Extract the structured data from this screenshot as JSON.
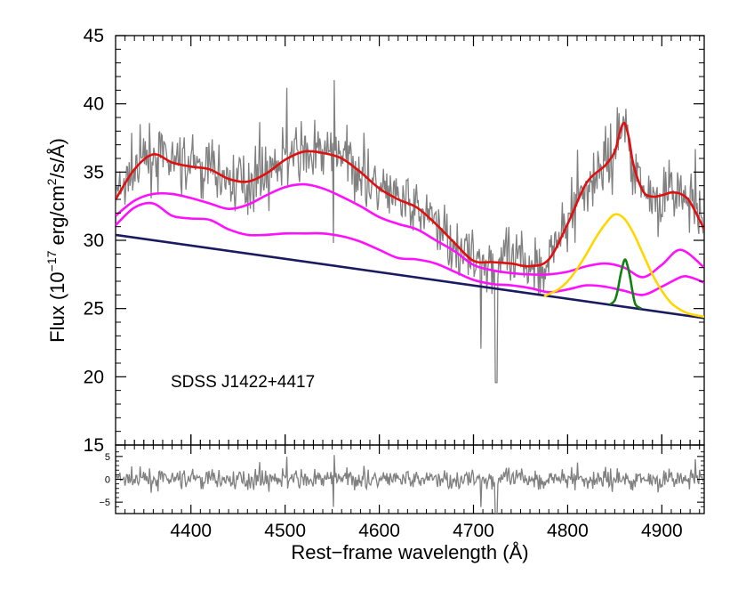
{
  "chart_data": [
    {
      "type": "line",
      "panel": "main spectrum fit",
      "annotation": "SDSS J1422+4417",
      "xlabel": "Rest−frame wavelength (Å)",
      "ylabel_parts": {
        "prefix": "Flux (10",
        "exp1": "−17",
        "mid": " erg/cm",
        "exp2": "2",
        "suffix": "/s/Å)"
      },
      "xlim": [
        4320,
        4945
      ],
      "ylim": [
        15,
        45
      ],
      "x_ticks": [
        4400,
        4500,
        4600,
        4700,
        4800,
        4900
      ],
      "x_tick_labels": [
        "4400",
        "4500",
        "4600",
        "4700",
        "4800",
        "4900"
      ],
      "y_ticks": [
        15,
        20,
        25,
        30,
        35,
        40,
        45
      ],
      "y_tick_labels": [
        "15",
        "20",
        "25",
        "30",
        "35",
        "40",
        "45"
      ],
      "colors": {
        "data": "#808080",
        "total_fit": "#e01010",
        "fe_template": "#ff10ff",
        "broad_hbeta": "#ffd700",
        "narrow_hbeta": "#108010",
        "continuum": "#1a1a60"
      },
      "series": [
        {
          "name": "continuum",
          "color_key": "continuum",
          "x": [
            4320,
            4945
          ],
          "y": [
            30.4,
            24.3
          ]
        },
        {
          "name": "total fit",
          "color_key": "total_fit",
          "x": [
            4320,
            4340,
            4360,
            4380,
            4400,
            4420,
            4440,
            4460,
            4480,
            4500,
            4520,
            4540,
            4560,
            4580,
            4600,
            4620,
            4640,
            4660,
            4680,
            4700,
            4720,
            4740,
            4760,
            4780,
            4800,
            4820,
            4840,
            4850,
            4855,
            4860,
            4865,
            4870,
            4880,
            4890,
            4900,
            4910,
            4920,
            4930,
            4945
          ],
          "y": [
            33.0,
            35.2,
            36.3,
            35.7,
            35.4,
            35.2,
            34.5,
            34.3,
            34.9,
            35.9,
            36.5,
            36.4,
            36.0,
            35.0,
            33.8,
            33.0,
            32.4,
            31.2,
            29.8,
            28.5,
            28.4,
            28.3,
            28.1,
            28.6,
            31.2,
            34.2,
            35.5,
            36.5,
            37.8,
            38.6,
            37.5,
            35.5,
            33.6,
            33.2,
            33.3,
            33.5,
            33.4,
            32.8,
            30.8
          ]
        },
        {
          "name": "Fe II template (upper)",
          "color_key": "fe_template",
          "x": [
            4320,
            4340,
            4360,
            4380,
            4400,
            4420,
            4440,
            4460,
            4480,
            4500,
            4520,
            4540,
            4560,
            4580,
            4600,
            4620,
            4640,
            4660,
            4680,
            4700,
            4720,
            4740,
            4760,
            4780,
            4800,
            4820,
            4840,
            4860,
            4880,
            4900,
            4920,
            4945
          ],
          "y": [
            31.8,
            32.9,
            33.4,
            33.4,
            33.1,
            32.7,
            32.3,
            32.6,
            33.3,
            33.9,
            34.1,
            33.8,
            33.2,
            32.5,
            31.7,
            31.2,
            30.8,
            30.0,
            29.2,
            28.2,
            27.8,
            27.6,
            27.5,
            27.5,
            27.7,
            28.1,
            28.3,
            28.0,
            27.3,
            28.2,
            29.3,
            28.0
          ]
        },
        {
          "name": "Fe II template (lower)",
          "color_key": "fe_template",
          "x": [
            4320,
            4340,
            4360,
            4380,
            4400,
            4420,
            4440,
            4460,
            4480,
            4500,
            4520,
            4540,
            4560,
            4580,
            4600,
            4620,
            4640,
            4660,
            4680,
            4700,
            4720,
            4740,
            4760,
            4780,
            4800,
            4820,
            4840,
            4860,
            4880,
            4900,
            4920,
            4930,
            4945
          ],
          "y": [
            31.1,
            32.4,
            32.7,
            31.8,
            31.6,
            31.5,
            30.8,
            30.4,
            30.4,
            30.5,
            30.5,
            30.5,
            30.3,
            29.9,
            29.3,
            28.7,
            28.6,
            28.3,
            27.7,
            27.1,
            26.8,
            26.7,
            26.5,
            26.2,
            26.4,
            26.7,
            26.6,
            26.3,
            26.0,
            26.6,
            27.3,
            27.3,
            26.9
          ]
        },
        {
          "name": "broad Hβ",
          "color_key": "broad_hbeta",
          "x": [
            4775,
            4790,
            4800,
            4810,
            4820,
            4830,
            4840,
            4850,
            4860,
            4870,
            4880,
            4890,
            4900,
            4910,
            4920,
            4930,
            4945
          ],
          "y": [
            25.9,
            26.4,
            27.0,
            27.9,
            29.0,
            30.2,
            31.2,
            31.9,
            31.6,
            30.5,
            29.0,
            27.5,
            26.3,
            25.4,
            24.9,
            24.6,
            24.4
          ]
        },
        {
          "name": "narrow Hβ",
          "color_key": "narrow_hbeta",
          "x": [
            4845,
            4850,
            4853,
            4856,
            4859,
            4861,
            4863,
            4866,
            4869,
            4872,
            4878
          ],
          "y": [
            25.3,
            25.6,
            26.3,
            27.4,
            28.3,
            28.6,
            28.3,
            27.4,
            26.2,
            25.3,
            25.0
          ]
        }
      ]
    },
    {
      "type": "line",
      "panel": "residuals",
      "ylim": [
        -7.5,
        7.5
      ],
      "y_ticks": [
        -5,
        0,
        5
      ],
      "y_tick_labels": [
        "−5",
        "0",
        "5"
      ],
      "color_key": "data"
    }
  ]
}
